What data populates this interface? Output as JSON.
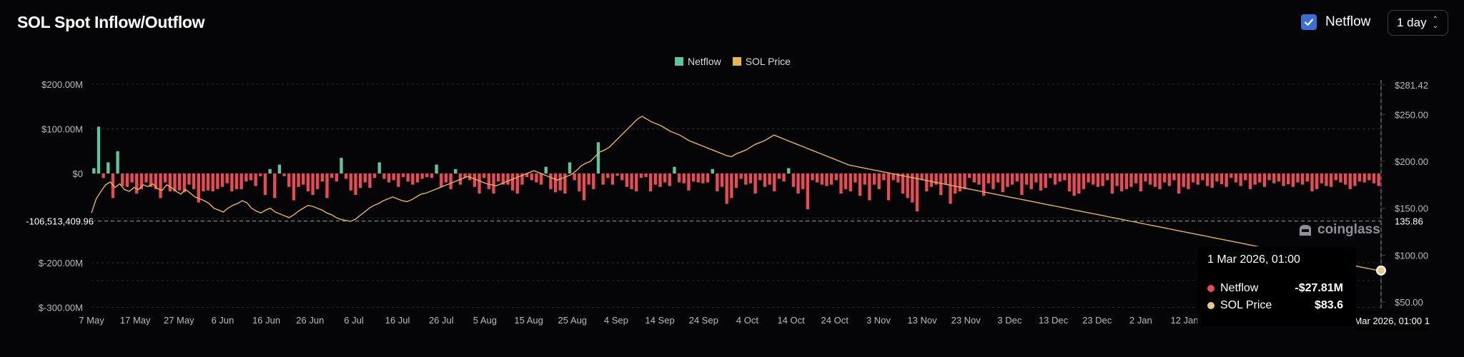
{
  "header": {
    "title": "SOL Spot Inflow/Outflow",
    "netflow_toggle": {
      "label": "Netflow",
      "checked": true
    },
    "interval": {
      "value": "1 day"
    }
  },
  "legend": [
    {
      "label": "Netflow",
      "color": "#5fc59c"
    },
    {
      "label": "SOL Price",
      "color": "#e8b64b"
    }
  ],
  "watermark": {
    "text": "coinglass"
  },
  "tooltip": {
    "time": "1 Mar 2026, 01:00",
    "rows": [
      {
        "label": "Netflow",
        "value": "-$27.81M",
        "color": "#e84b54"
      },
      {
        "label": "SOL Price",
        "value": "$83.6",
        "color": "#e8c88c"
      }
    ]
  },
  "crosshair": {
    "y_label": "-106,513,409.96",
    "right_label": "135.86",
    "time_badge": "1 Mar 2026, 01:00"
  },
  "chart_data": {
    "type": "bar",
    "title": "SOL Spot Inflow/Outflow",
    "x_ticks": [
      "7 May",
      "17 May",
      "27 May",
      "6 Jun",
      "16 Jun",
      "26 Jun",
      "6 Jul",
      "16 Jul",
      "26 Jul",
      "5 Aug",
      "15 Aug",
      "25 Aug",
      "4 Sep",
      "14 Sep",
      "24 Sep",
      "4 Oct",
      "14 Oct",
      "24 Oct",
      "3 Nov",
      "13 Nov",
      "23 Nov",
      "3 Dec",
      "13 Dec",
      "23 Dec",
      "2 Jan",
      "12 Jan"
    ],
    "y_left": {
      "ticks": [
        "$200.00M",
        "$100.00M",
        "$0",
        "$-200.00M",
        "$-300.00M"
      ],
      "tick_values": [
        200,
        100,
        0,
        -200,
        -300
      ],
      "range": [
        -300,
        200
      ],
      "unit": "USD millions"
    },
    "y_right": {
      "ticks": [
        "$281.42",
        "$250.00",
        "$200.00",
        "$150.00",
        "$100.00",
        "$50.00"
      ],
      "tick_values": [
        281.42,
        250,
        200,
        150,
        100,
        50
      ],
      "range": [
        50,
        281.42
      ]
    },
    "grid": true,
    "legend_position": "top-center",
    "series": [
      {
        "name": "Netflow",
        "type": "bar",
        "positive_color": "#5fc59c",
        "negative_color": "#e84b54",
        "values": [
          12,
          105,
          -10,
          25,
          -55,
          50,
          -28,
          -30,
          -20,
          -45,
          -35,
          -20,
          -30,
          -35,
          -55,
          -20,
          -40,
          -40,
          -38,
          -42,
          -25,
          -35,
          -65,
          -40,
          -38,
          -40,
          -35,
          -30,
          -22,
          -40,
          -35,
          -35,
          -18,
          -15,
          -28,
          -6,
          -48,
          10,
          -55,
          20,
          -6,
          -30,
          -60,
          -30,
          -25,
          -40,
          -48,
          -35,
          -18,
          -55,
          -10,
          -18,
          35,
          -12,
          -38,
          -48,
          -32,
          -20,
          -32,
          -10,
          25,
          -12,
          -20,
          -15,
          -30,
          -8,
          -18,
          -25,
          -20,
          -12,
          -8,
          -10,
          20,
          -30,
          -20,
          -35,
          10,
          -25,
          -10,
          -15,
          -30,
          -45,
          -10,
          -35,
          -45,
          -18,
          -25,
          -25,
          -38,
          -45,
          -25,
          -8,
          -15,
          -20,
          -25,
          15,
          -35,
          -42,
          -38,
          -45,
          25,
          -15,
          -40,
          -60,
          -25,
          -35,
          70,
          -25,
          -10,
          -25,
          -5,
          -15,
          -30,
          -35,
          -40,
          -10,
          -8,
          -40,
          -25,
          -30,
          -20,
          -28,
          15,
          -20,
          -22,
          -38,
          -18,
          -20,
          -22,
          -20,
          10,
          -40,
          -30,
          -68,
          -55,
          -32,
          -12,
          -25,
          -22,
          -45,
          -15,
          -30,
          -25,
          -40,
          -12,
          -18,
          12,
          -30,
          -45,
          -35,
          -80,
          -15,
          -20,
          -25,
          -28,
          -25,
          -15,
          -45,
          -35,
          -40,
          -20,
          -50,
          -25,
          -60,
          -25,
          -35,
          -15,
          -60,
          -15,
          -20,
          -45,
          -55,
          -65,
          -85,
          -15,
          -40,
          -30,
          -25,
          -48,
          -25,
          -68,
          -45,
          -40,
          -35,
          -10,
          -20,
          -25,
          -50,
          -22,
          -35,
          -20,
          -42,
          -30,
          -25,
          -18,
          -48,
          -25,
          -35,
          -20,
          -38,
          -32,
          -10,
          -25,
          -18,
          -15,
          -40,
          -50,
          -45,
          -35,
          -20,
          -25,
          -30,
          -28,
          -15,
          -45,
          -28,
          -40,
          -35,
          -30,
          -22,
          -40,
          -18,
          -25,
          -30,
          -35,
          -20,
          -28,
          -15,
          -45,
          -30,
          -35,
          -20,
          -25,
          -15,
          -28,
          -32,
          -18,
          -24,
          -30,
          -10,
          -20,
          -28,
          -15,
          -35,
          -25,
          -20,
          -30,
          -15,
          -22,
          -18,
          -28,
          -24,
          -30,
          -20,
          -25,
          -18,
          -40,
          -35,
          -22,
          -28,
          -30,
          -15,
          -20,
          -25,
          -35,
          -28,
          -18,
          -20,
          -15,
          -22,
          -28
        ]
      },
      {
        "name": "SOL Price",
        "type": "line",
        "color": "#e8b64b",
        "axis": "right",
        "values": [
          145,
          160,
          168,
          175,
          178,
          172,
          176,
          170,
          168,
          172,
          170,
          175,
          173,
          176,
          171,
          169,
          175,
          172,
          168,
          165,
          170,
          166,
          162,
          160,
          158,
          155,
          150,
          148,
          146,
          150,
          153,
          155,
          158,
          156,
          150,
          147,
          145,
          148,
          150,
          146,
          144,
          142,
          140,
          143,
          147,
          150,
          153,
          152,
          150,
          148,
          145,
          143,
          140,
          138,
          137,
          136,
          138,
          142,
          146,
          150,
          153,
          155,
          158,
          160,
          162,
          160,
          158,
          157,
          159,
          162,
          165,
          166,
          168,
          170,
          172,
          174,
          176,
          178,
          180,
          182,
          184,
          182,
          180,
          178,
          176,
          175,
          174,
          176,
          178,
          180,
          182,
          184,
          186,
          188,
          190,
          188,
          186,
          184,
          182,
          180,
          182,
          184,
          186,
          190,
          195,
          198,
          200,
          205,
          210,
          212,
          215,
          220,
          225,
          230,
          235,
          240,
          245,
          248,
          245,
          242,
          240,
          238,
          235,
          232,
          230,
          228,
          225,
          222,
          220,
          218,
          216,
          214,
          212,
          210,
          208,
          206,
          205,
          208,
          210,
          212,
          215,
          218,
          220,
          222,
          225,
          228,
          226,
          224,
          222,
          220,
          218,
          216,
          214,
          212,
          210,
          208,
          206,
          204,
          202,
          200,
          198,
          196,
          195,
          194,
          193,
          192,
          191,
          190,
          189,
          188,
          187,
          186,
          185,
          184,
          183,
          182,
          181,
          180,
          179,
          178,
          177,
          176,
          175,
          174,
          173,
          172,
          171,
          170,
          169,
          168,
          167,
          166,
          165,
          164,
          163,
          162,
          161,
          160,
          159,
          158,
          157,
          156,
          155,
          154,
          153,
          152,
          151,
          150,
          149,
          148,
          147,
          146,
          145,
          144,
          143,
          142,
          141,
          140,
          139,
          138,
          137,
          136,
          135,
          134,
          133,
          132,
          131,
          130,
          129,
          128,
          127,
          126,
          125,
          124,
          123,
          122,
          121,
          120,
          119,
          118,
          117,
          116,
          115,
          114,
          113,
          112,
          111,
          110,
          109,
          108,
          107,
          106,
          105,
          104,
          103,
          102,
          101,
          100,
          99,
          98,
          97,
          96,
          95,
          94,
          93,
          92,
          91,
          90,
          89,
          88,
          87,
          86,
          85,
          84,
          83.6
        ]
      }
    ]
  }
}
